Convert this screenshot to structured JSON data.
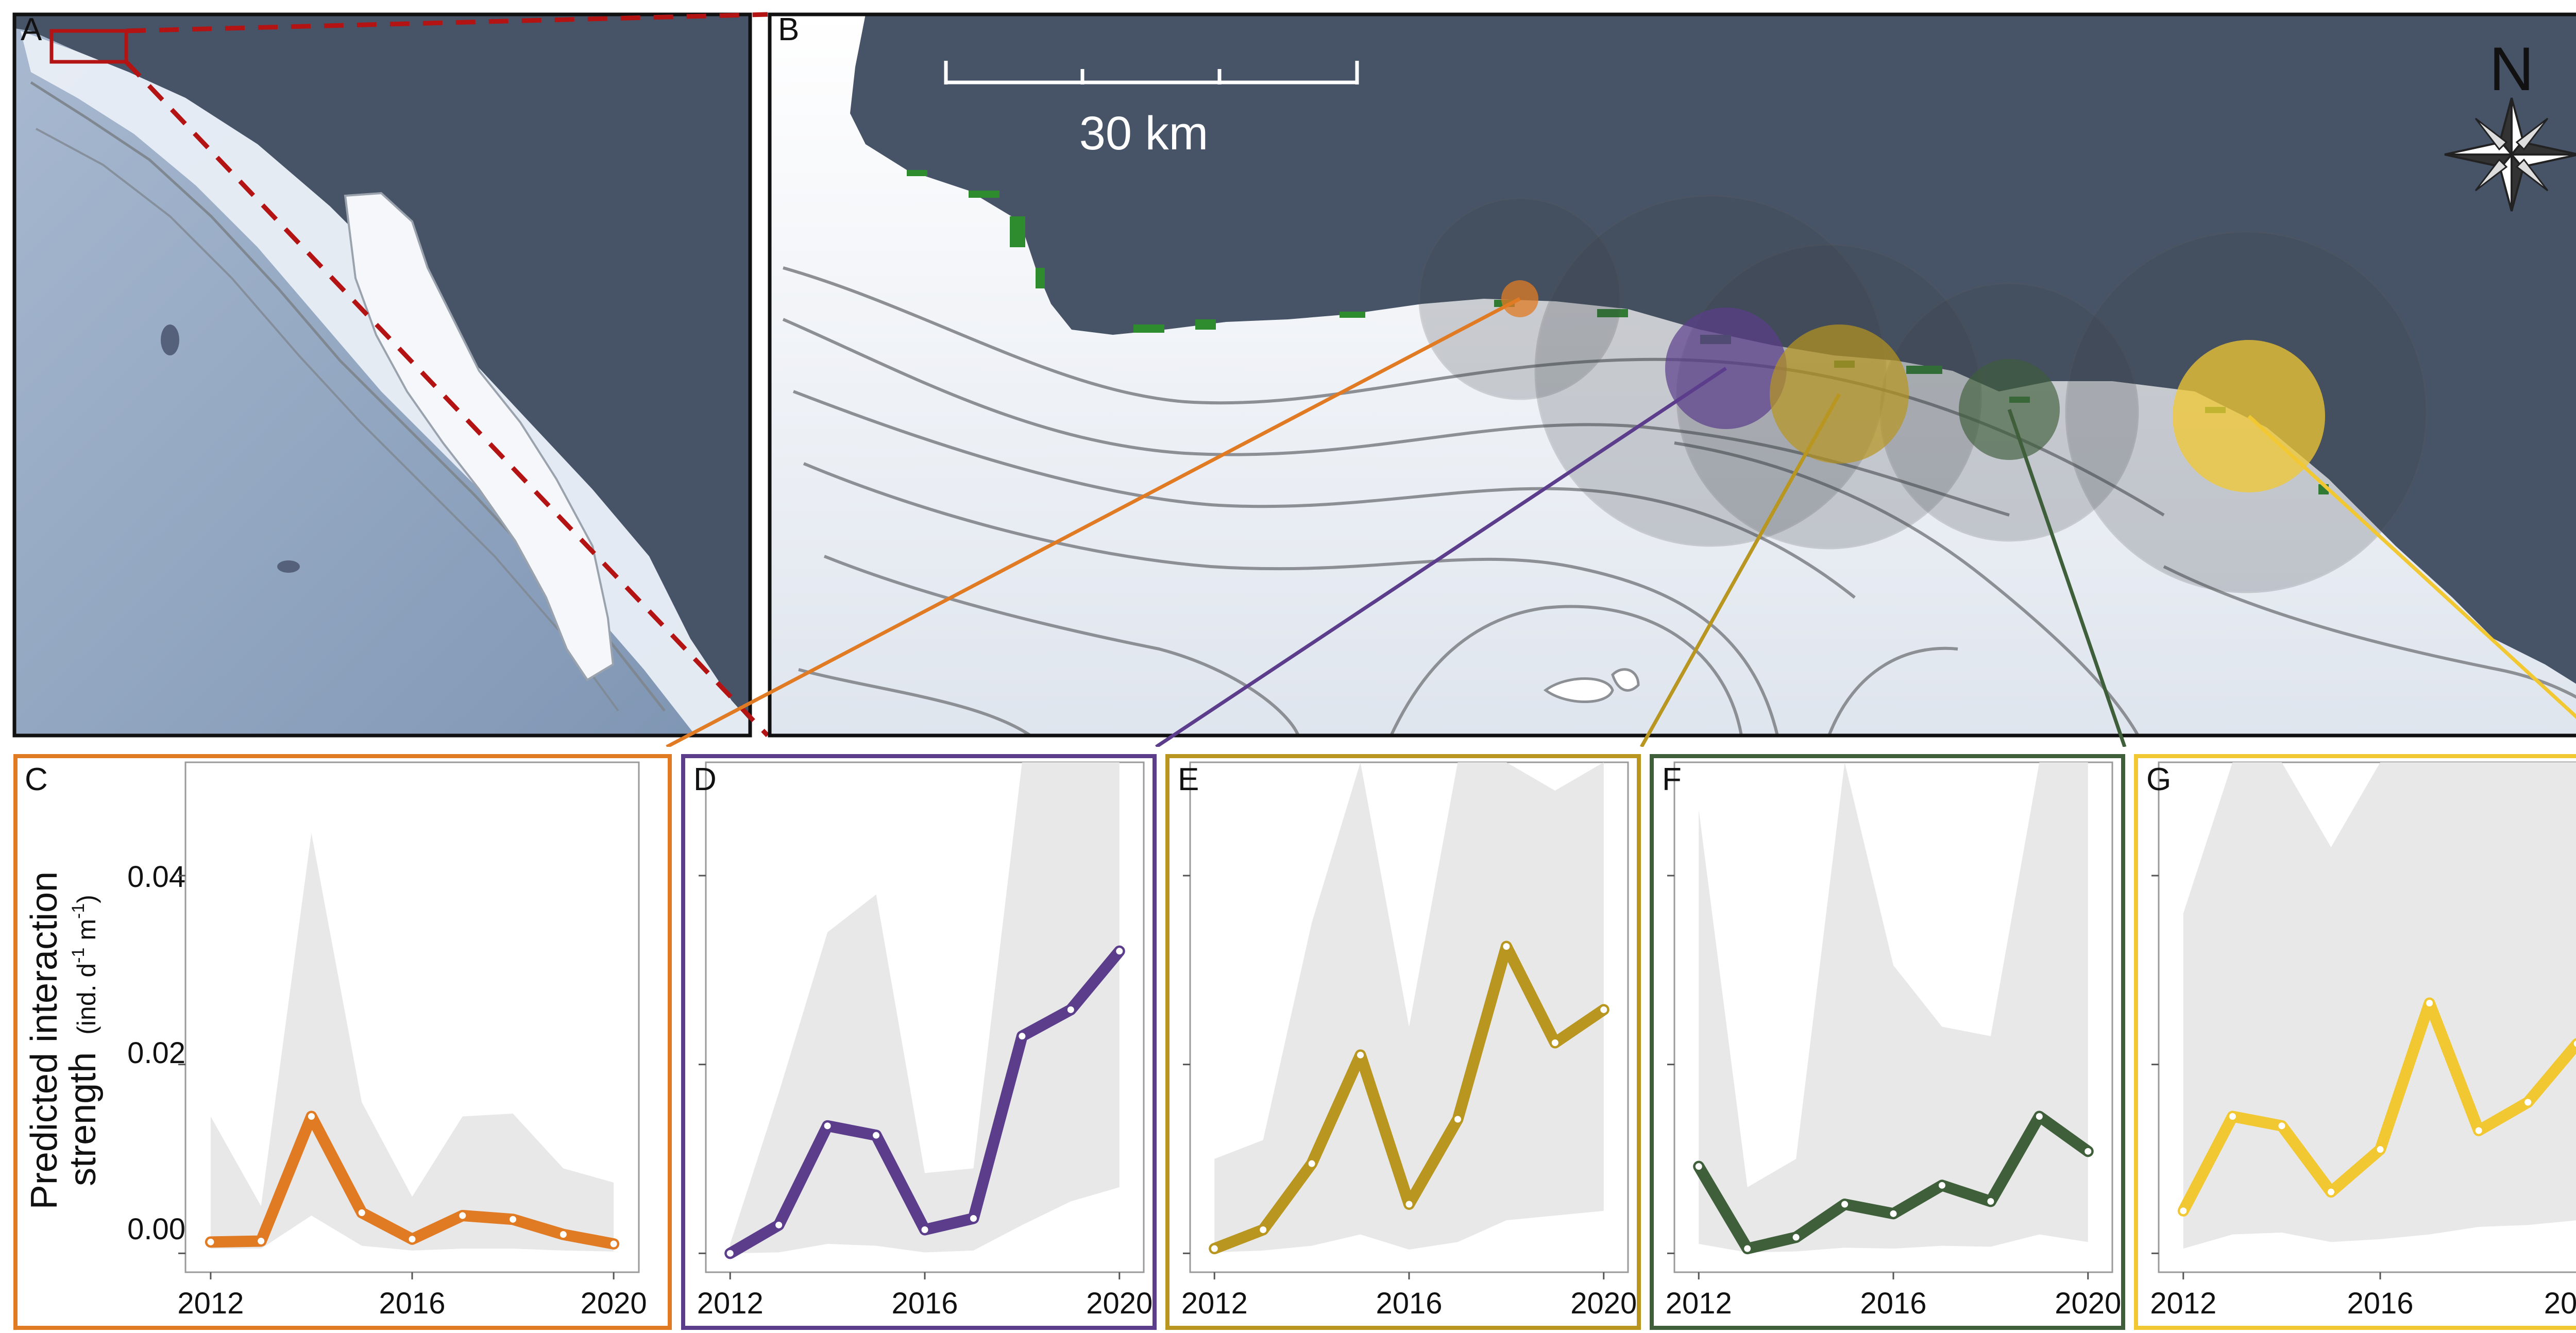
{
  "panels": {
    "A": {
      "label": "A"
    },
    "B": {
      "label": "B",
      "scale_label": "30 km",
      "north_label": "N"
    },
    "C": {
      "label": "C"
    },
    "D": {
      "label": "D"
    },
    "E": {
      "label": "E"
    },
    "F": {
      "label": "F"
    },
    "G": {
      "label": "G"
    }
  },
  "colors": {
    "land": "#475467",
    "ocean_shallow": "#f4f6f9",
    "ocean_deep": "#8ea4c0",
    "contour": "#8c8f94",
    "kelp": "#2e8b2e",
    "inset_box": "#b31313",
    "C": "#e07b24",
    "D": "#5b3d8c",
    "E": "#b8961f",
    "F": "#3f5e3a",
    "G": "#f2c832",
    "ci_band": "#e8e8e8"
  },
  "y_axis": {
    "label_main": "Predicted interaction",
    "label_line2": "strength",
    "label_units": "(ind. d",
    "label_sup1": "-1",
    "label_mid": " m",
    "label_sup2": "-1",
    "label_end": ")",
    "ticks": [
      "0.00",
      "0.02",
      "0.04"
    ]
  },
  "x_ticks": [
    "2012",
    "2016",
    "2020"
  ],
  "chart_data": [
    {
      "panel": "C",
      "type": "line",
      "x": [
        2012,
        2013,
        2014,
        2015,
        2016,
        2017,
        2018,
        2019,
        2020
      ],
      "values": [
        0.0012,
        0.0013,
        0.0145,
        0.0043,
        0.0015,
        0.004,
        0.0036,
        0.002,
        0.001
      ],
      "ci_lower": [
        0.0005,
        0.0005,
        0.004,
        0.0008,
        0.0003,
        0.0005,
        0.0005,
        0.0003,
        0.0002
      ],
      "ci_upper": [
        0.0145,
        0.005,
        0.0445,
        0.016,
        0.006,
        0.0145,
        0.0148,
        0.009,
        0.0075
      ],
      "ylim": [
        -0.002,
        0.052
      ],
      "xlim": [
        2011.5,
        2020.5
      ]
    },
    {
      "panel": "D",
      "type": "line",
      "x": [
        2012,
        2013,
        2014,
        2015,
        2016,
        2017,
        2018,
        2019,
        2020
      ],
      "values": [
        0.0,
        0.003,
        0.0135,
        0.0125,
        0.0025,
        0.0037,
        0.023,
        0.0258,
        0.032
      ],
      "ci_lower": [
        0.0,
        0.0001,
        0.001,
        0.0008,
        0.0001,
        0.0003,
        0.003,
        0.0055,
        0.007
      ],
      "ci_upper": [
        0.001,
        0.017,
        0.034,
        0.038,
        0.0085,
        0.009,
        0.052,
        0.052,
        0.052
      ],
      "ylim": [
        -0.002,
        0.052
      ],
      "xlim": [
        2011.5,
        2020.5
      ]
    },
    {
      "panel": "E",
      "type": "line",
      "x": [
        2012,
        2013,
        2014,
        2015,
        2016,
        2017,
        2018,
        2019,
        2020
      ],
      "values": [
        0.0005,
        0.0025,
        0.0095,
        0.021,
        0.0052,
        0.0142,
        0.0325,
        0.0223,
        0.0258
      ],
      "ci_lower": [
        0.0001,
        0.0003,
        0.0008,
        0.002,
        0.0004,
        0.0012,
        0.0035,
        0.004,
        0.0045
      ],
      "ci_upper": [
        0.01,
        0.012,
        0.035,
        0.052,
        0.024,
        0.052,
        0.052,
        0.049,
        0.052
      ],
      "ylim": [
        -0.002,
        0.052
      ],
      "xlim": [
        2011.5,
        2020.5
      ]
    },
    {
      "panel": "F",
      "type": "line",
      "x": [
        2012,
        2013,
        2014,
        2015,
        2016,
        2017,
        2018,
        2019,
        2020
      ],
      "values": [
        0.0092,
        0.0005,
        0.0017,
        0.0052,
        0.0042,
        0.0072,
        0.0055,
        0.0145,
        0.0108
      ],
      "ci_lower": [
        0.001,
        0.0001,
        0.0002,
        0.0006,
        0.0005,
        0.0008,
        0.0007,
        0.002,
        0.0012
      ],
      "ci_upper": [
        0.047,
        0.007,
        0.01,
        0.052,
        0.0305,
        0.024,
        0.023,
        0.052,
        0.052
      ],
      "ylim": [
        -0.002,
        0.052
      ],
      "xlim": [
        2011.5,
        2020.5
      ]
    },
    {
      "panel": "G",
      "type": "line",
      "x": [
        2012,
        2013,
        2014,
        2015,
        2016,
        2017,
        2018,
        2019,
        2020
      ],
      "values": [
        0.0045,
        0.0145,
        0.0135,
        0.0065,
        0.011,
        0.0265,
        0.013,
        0.016,
        0.0222
      ],
      "ci_lower": [
        0.0005,
        0.002,
        0.0022,
        0.0012,
        0.0015,
        0.002,
        0.0028,
        0.003,
        0.0035
      ],
      "ci_upper": [
        0.036,
        0.052,
        0.052,
        0.043,
        0.052,
        0.052,
        0.052,
        0.052,
        0.052
      ],
      "ylim": [
        -0.002,
        0.052
      ],
      "xlim": [
        2011.5,
        2020.5
      ]
    }
  ]
}
